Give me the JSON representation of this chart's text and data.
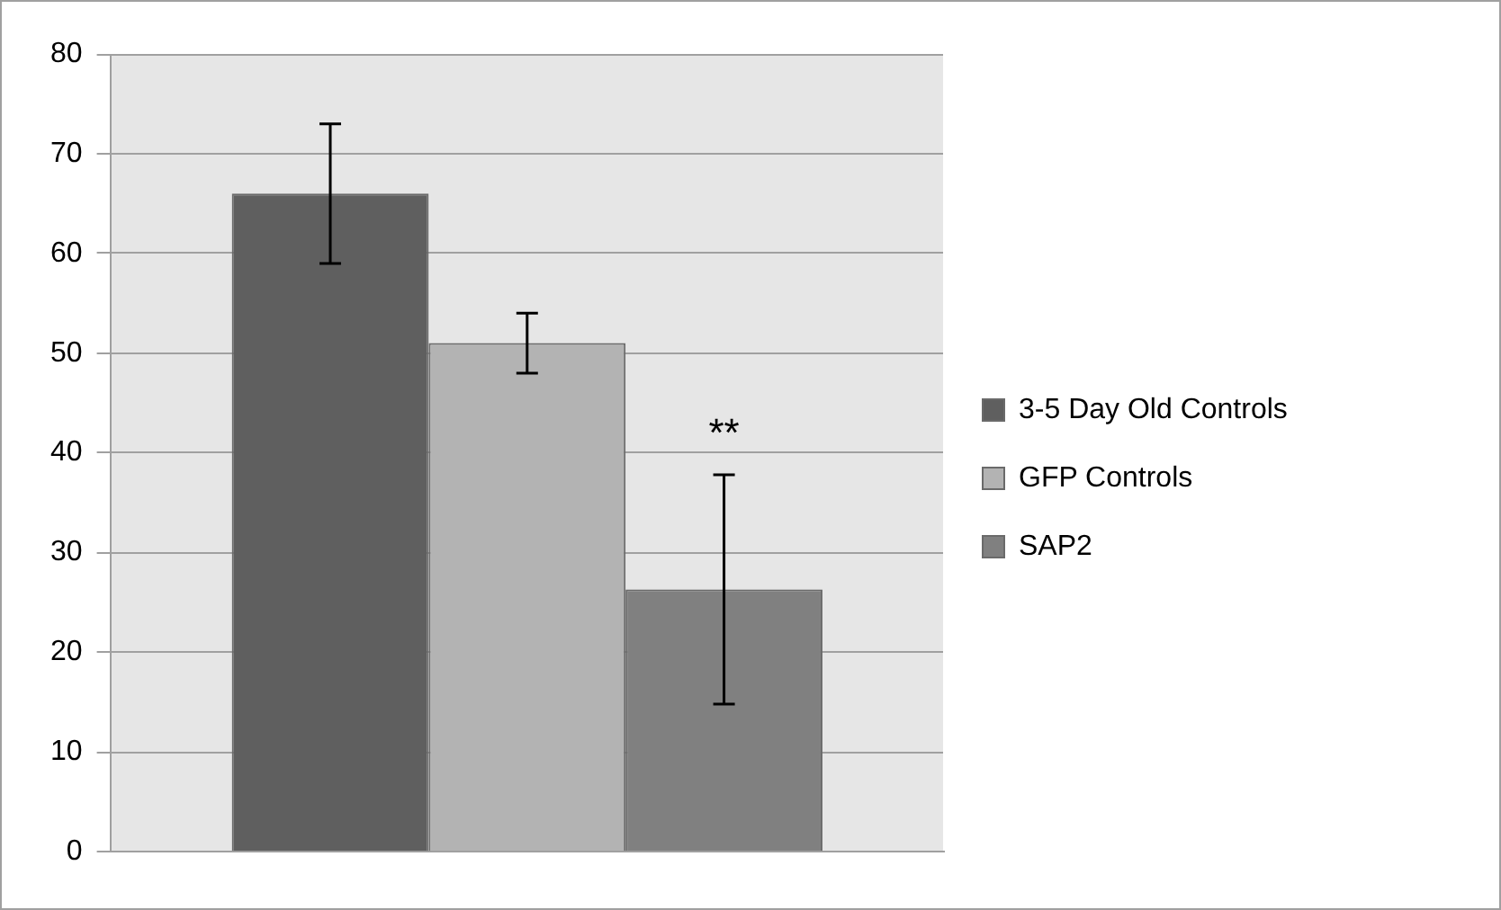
{
  "chart_data": {
    "type": "bar",
    "categories": [
      null
    ],
    "series": [
      {
        "name": "3-5 Day Old Controls",
        "color": "#5f5f5f",
        "values": [
          66
        ],
        "errors": [
          7
        ]
      },
      {
        "name": "GFP Controls",
        "color": "#b3b3b3",
        "values": [
          51
        ],
        "errors": [
          3
        ]
      },
      {
        "name": "SAP2",
        "color": "#808080",
        "values": [
          26.3
        ],
        "errors": [
          11.5
        ]
      }
    ],
    "annotations": [
      "**"
    ],
    "ylim": [
      0,
      80
    ],
    "yticks": [
      0,
      10,
      20,
      30,
      40,
      50,
      60,
      70,
      80
    ],
    "grid": "y",
    "legend": "right"
  }
}
